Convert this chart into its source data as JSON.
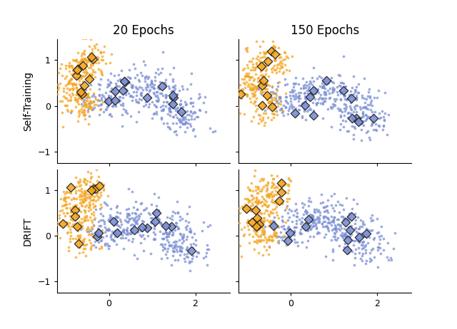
{
  "title_col1": "20 Epochs",
  "title_col2": "150 Epochs",
  "row_labels": [
    "Self-Training",
    "DRIFT"
  ],
  "orange_color": "#F5A623",
  "blue_color": "#7B8FD4",
  "diamond_edge_color": "#1a1a1a",
  "bg_color": "#ffffff",
  "xlim": [
    -1.2,
    2.8
  ],
  "ylim": [
    -1.25,
    1.45
  ],
  "xticks": [
    0,
    2
  ],
  "yticks": [
    -1,
    0,
    1
  ],
  "title_fontsize": 12,
  "label_fontsize": 10,
  "tick_fontsize": 9,
  "point_size": 7,
  "diamond_size": 40,
  "diamond_lw": 0.9,
  "point_alpha": 0.75
}
